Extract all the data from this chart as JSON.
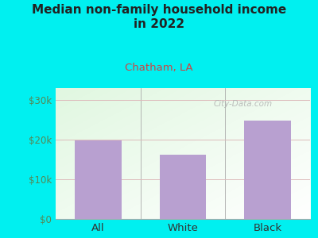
{
  "title": "Median non-family household income\nin 2022",
  "subtitle": "Chatham, LA",
  "categories": [
    "All",
    "White",
    "Black"
  ],
  "values": [
    19800,
    16200,
    24800
  ],
  "bar_color": "#b8a0d0",
  "title_color": "#222222",
  "subtitle_color": "#cc4444",
  "background_color": "#00f0f0",
  "yticks": [
    0,
    10000,
    20000,
    30000
  ],
  "ytick_labels": [
    "$0",
    "$10k",
    "$20k",
    "$30k"
  ],
  "ylim": [
    0,
    33000
  ],
  "watermark": "City-Data.com",
  "ytick_color": "#558855",
  "xtick_color": "#333333",
  "grid_color": "#ddbbbb"
}
